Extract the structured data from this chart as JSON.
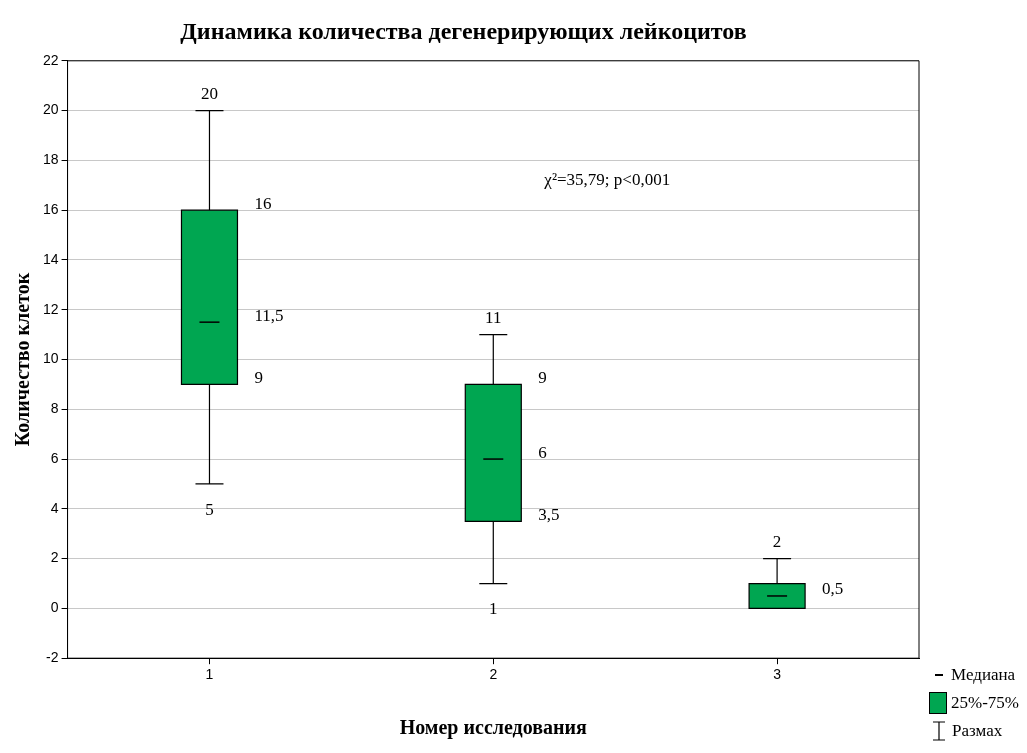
{
  "chart_data": {
    "type": "box",
    "title": "Динамика количества дегенерирующих лейкоцитов",
    "xlabel": "Номер исследования",
    "ylabel": "Количество клеток",
    "categories": [
      "1",
      "2",
      "3"
    ],
    "series": [
      {
        "name": "25%-75%",
        "color": "#00a651",
        "boxes": [
          {
            "low": 5,
            "q1": 9,
            "median": 11.5,
            "q3": 16,
            "high": 20
          },
          {
            "low": 1,
            "q1": 3.5,
            "median": 6,
            "q3": 9,
            "high": 11
          },
          {
            "low": 0,
            "q1": 0,
            "median": 0.5,
            "q3": 1,
            "high": 2
          }
        ]
      }
    ],
    "ylim": [
      -2,
      22
    ],
    "yticks": [
      -2,
      0,
      2,
      4,
      6,
      8,
      10,
      12,
      14,
      16,
      18,
      20,
      22
    ],
    "grid": "y",
    "legend": "bottom right",
    "annotations": [
      "χ²=35,79; p<0,001",
      "Медиана",
      "Размах",
      {
        "text": "20",
        "x": "1",
        "y": 20
      },
      {
        "text": "16",
        "x": "1",
        "y": 16
      },
      {
        "text": "11,5",
        "x": "1",
        "y": 11.5
      },
      {
        "text": "9",
        "x": "1",
        "y": 9
      },
      {
        "text": "5",
        "x": "1",
        "y": 5
      },
      {
        "text": "11",
        "x": "2",
        "y": 11
      },
      {
        "text": "9",
        "x": "2",
        "y": 9
      },
      {
        "text": "6",
        "x": "2",
        "y": 6
      },
      {
        "text": "3,5",
        "x": "2",
        "y": 3.5
      },
      {
        "text": "1",
        "x": "2",
        "y": 1
      },
      {
        "text": "2",
        "x": "3",
        "y": 2
      },
      {
        "text": "0,5",
        "x": "3",
        "y": 0.5
      }
    ]
  }
}
